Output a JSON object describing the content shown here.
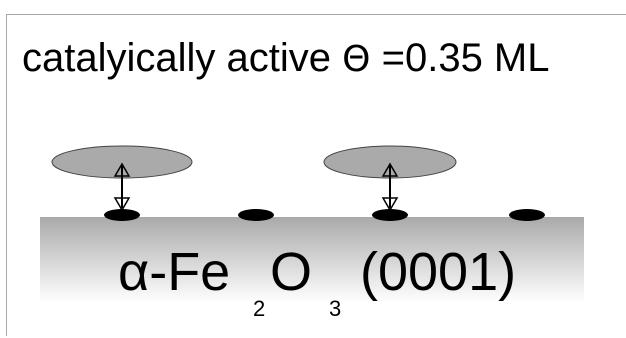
{
  "heading": {
    "text_before": "catalyically active",
    "symbol": "Θ",
    "text_after": "=0.35 ML"
  },
  "substrate": {
    "label_prefix": "α-Fe",
    "subscript_1": "2",
    "label_middle": "O",
    "subscript_2": "3",
    "label_suffix": "(0001)"
  },
  "colors": {
    "adsorbate_disc": "#aaaaaa",
    "surface_site": "#000000",
    "substrate_top": "#a9a9a9",
    "substrate_bottom": "#ffffff"
  },
  "icons": [
    "double-headed-arrow-icon"
  ]
}
